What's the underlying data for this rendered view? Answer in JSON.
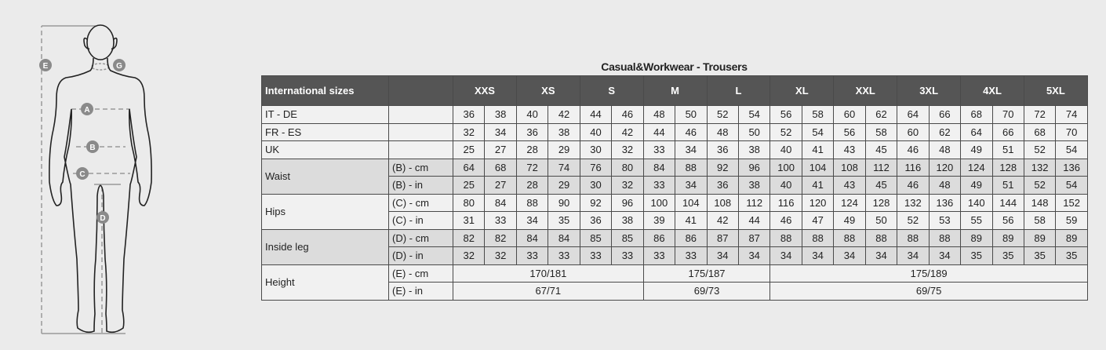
{
  "figure": {
    "markers": [
      "E",
      "G",
      "A",
      "B",
      "C",
      "D"
    ]
  },
  "title": "Casual&Workwear - Trousers",
  "table": {
    "header_label": "International sizes",
    "sizes": [
      "XXS",
      "XS",
      "S",
      "M",
      "L",
      "XL",
      "XXL",
      "3XL",
      "4XL",
      "5XL"
    ],
    "rows": [
      {
        "group": "IT - DE",
        "unit": "",
        "shade": "light",
        "values": [
          "36",
          "38",
          "40",
          "42",
          "44",
          "46",
          "48",
          "50",
          "52",
          "54",
          "56",
          "58",
          "60",
          "62",
          "64",
          "66",
          "68",
          "70",
          "72",
          "74"
        ]
      },
      {
        "group": "FR - ES",
        "unit": "",
        "shade": "light",
        "values": [
          "32",
          "34",
          "36",
          "38",
          "40",
          "42",
          "44",
          "46",
          "48",
          "50",
          "52",
          "54",
          "56",
          "58",
          "60",
          "62",
          "64",
          "66",
          "68",
          "70"
        ]
      },
      {
        "group": "UK",
        "unit": "",
        "shade": "light",
        "values": [
          "25",
          "27",
          "28",
          "29",
          "30",
          "32",
          "33",
          "34",
          "36",
          "38",
          "40",
          "41",
          "43",
          "45",
          "46",
          "48",
          "49",
          "51",
          "52",
          "54"
        ]
      },
      {
        "group": "Waist",
        "unit": "(B) - cm",
        "shade": "dark",
        "values": [
          "64",
          "68",
          "72",
          "74",
          "76",
          "80",
          "84",
          "88",
          "92",
          "96",
          "100",
          "104",
          "108",
          "112",
          "116",
          "120",
          "124",
          "128",
          "132",
          "136"
        ]
      },
      {
        "group": "Waist",
        "unit": "(B) - in",
        "shade": "dark",
        "values": [
          "25",
          "27",
          "28",
          "29",
          "30",
          "32",
          "33",
          "34",
          "36",
          "38",
          "40",
          "41",
          "43",
          "45",
          "46",
          "48",
          "49",
          "51",
          "52",
          "54"
        ]
      },
      {
        "group": "Hips",
        "unit": "(C) - cm",
        "shade": "light",
        "values": [
          "80",
          "84",
          "88",
          "90",
          "92",
          "96",
          "100",
          "104",
          "108",
          "112",
          "116",
          "120",
          "124",
          "128",
          "132",
          "136",
          "140",
          "144",
          "148",
          "152"
        ]
      },
      {
        "group": "Hips",
        "unit": "(C) - in",
        "shade": "light",
        "values": [
          "31",
          "33",
          "34",
          "35",
          "36",
          "38",
          "39",
          "41",
          "42",
          "44",
          "46",
          "47",
          "49",
          "50",
          "52",
          "53",
          "55",
          "56",
          "58",
          "59"
        ]
      },
      {
        "group": "Inside leg",
        "unit": "(D) - cm",
        "shade": "dark",
        "values": [
          "82",
          "82",
          "84",
          "84",
          "85",
          "85",
          "86",
          "86",
          "87",
          "87",
          "88",
          "88",
          "88",
          "88",
          "88",
          "88",
          "89",
          "89",
          "89",
          "89"
        ]
      },
      {
        "group": "Inside leg",
        "unit": "(D) - in",
        "shade": "dark",
        "values": [
          "32",
          "32",
          "33",
          "33",
          "33",
          "33",
          "33",
          "33",
          "34",
          "34",
          "34",
          "34",
          "34",
          "34",
          "34",
          "34",
          "35",
          "35",
          "35",
          "35"
        ]
      }
    ],
    "height_rows": [
      {
        "group": "Height",
        "unit": "(E) - cm",
        "values": [
          "170/181",
          "175/187",
          "175/189"
        ]
      },
      {
        "group": "Height",
        "unit": "(E) - in",
        "values": [
          "67/71",
          "69/73",
          "69/75"
        ]
      }
    ]
  }
}
